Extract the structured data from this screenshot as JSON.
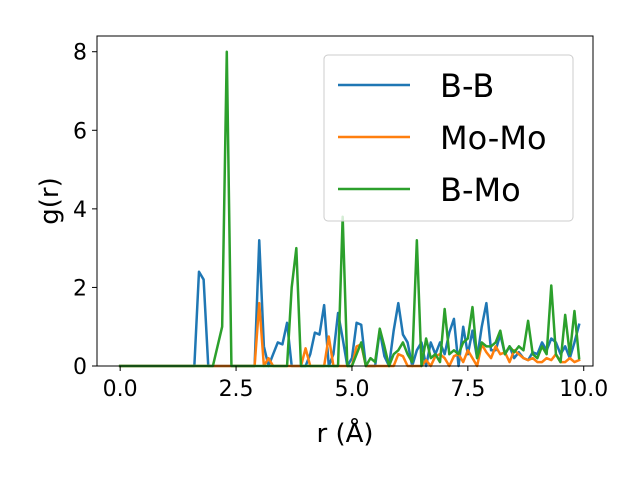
{
  "chart_data": {
    "type": "line",
    "xlabel": "r (Å)",
    "ylabel": "g(r)",
    "xlim": [
      -0.5,
      10.2
    ],
    "ylim": [
      0,
      8.4
    ],
    "xticks": [
      0.0,
      2.5,
      5.0,
      7.5,
      10.0
    ],
    "xtick_labels": [
      "0.0",
      "2.5",
      "5.0",
      "7.5",
      "10.0"
    ],
    "yticks": [
      0,
      2,
      4,
      6,
      8
    ],
    "ytick_labels": [
      "0",
      "2",
      "4",
      "6",
      "8"
    ],
    "grid": false,
    "legend_position": "top-right",
    "series": [
      {
        "name": "B-B",
        "color": "#1f77b4",
        "points": [
          [
            0.0,
            0
          ],
          [
            1.6,
            0
          ],
          [
            1.7,
            2.4
          ],
          [
            1.8,
            2.2
          ],
          [
            1.9,
            0
          ],
          [
            2.9,
            0
          ],
          [
            3.0,
            3.2
          ],
          [
            3.1,
            0.5
          ],
          [
            3.2,
            0
          ],
          [
            3.3,
            0.3
          ],
          [
            3.4,
            0.6
          ],
          [
            3.5,
            0.55
          ],
          [
            3.6,
            1.1
          ],
          [
            3.7,
            0
          ],
          [
            4.0,
            0
          ],
          [
            4.1,
            0.3
          ],
          [
            4.2,
            0.85
          ],
          [
            4.3,
            0.8
          ],
          [
            4.4,
            1.55
          ],
          [
            4.5,
            0
          ],
          [
            4.6,
            0.3
          ],
          [
            4.7,
            1.35
          ],
          [
            4.8,
            0.7
          ],
          [
            4.9,
            0
          ],
          [
            5.0,
            0.2
          ],
          [
            5.1,
            1.1
          ],
          [
            5.2,
            1.05
          ],
          [
            5.3,
            0
          ],
          [
            5.5,
            0
          ],
          [
            5.6,
            0.9
          ],
          [
            5.7,
            0.25
          ],
          [
            5.8,
            0
          ],
          [
            5.9,
            0.9
          ],
          [
            6.0,
            1.6
          ],
          [
            6.1,
            0.8
          ],
          [
            6.2,
            0.6
          ],
          [
            6.3,
            0
          ],
          [
            6.4,
            0.4
          ],
          [
            6.5,
            0.6
          ],
          [
            6.6,
            0
          ],
          [
            6.7,
            0.6
          ],
          [
            6.8,
            0.3
          ],
          [
            6.9,
            0.6
          ],
          [
            7.0,
            0.3
          ],
          [
            7.1,
            0.85
          ],
          [
            7.2,
            1.2
          ],
          [
            7.3,
            0
          ],
          [
            7.4,
            1.0
          ],
          [
            7.5,
            0.3
          ],
          [
            7.6,
            0.9
          ],
          [
            7.7,
            0.2
          ],
          [
            7.8,
            1.0
          ],
          [
            7.9,
            1.6
          ],
          [
            8.0,
            0.4
          ],
          [
            8.1,
            0.4
          ],
          [
            8.2,
            0.8
          ],
          [
            8.3,
            0.3
          ],
          [
            8.4,
            0.5
          ],
          [
            8.5,
            0.2
          ],
          [
            8.6,
            0.35
          ],
          [
            8.7,
            0.2
          ],
          [
            8.8,
            0.15
          ],
          [
            8.9,
            0.35
          ],
          [
            9.0,
            0.3
          ],
          [
            9.1,
            0.6
          ],
          [
            9.2,
            0.4
          ],
          [
            9.3,
            0.7
          ],
          [
            9.4,
            0.6
          ],
          [
            9.5,
            0.3
          ],
          [
            9.6,
            0.5
          ],
          [
            9.7,
            0.2
          ],
          [
            9.8,
            0.6
          ],
          [
            9.9,
            1.05
          ]
        ]
      },
      {
        "name": "Mo-Mo",
        "color": "#ff7f0e",
        "points": [
          [
            0.0,
            0
          ],
          [
            2.9,
            0
          ],
          [
            3.0,
            1.6
          ],
          [
            3.1,
            0
          ],
          [
            3.2,
            0.2
          ],
          [
            3.3,
            0
          ],
          [
            3.9,
            0
          ],
          [
            4.0,
            0.45
          ],
          [
            4.1,
            0
          ],
          [
            4.4,
            0
          ],
          [
            4.5,
            0.75
          ],
          [
            4.6,
            0
          ],
          [
            5.0,
            0
          ],
          [
            5.1,
            0.5
          ],
          [
            5.2,
            0.55
          ],
          [
            5.3,
            0
          ],
          [
            5.9,
            0
          ],
          [
            6.0,
            0.3
          ],
          [
            6.1,
            0.25
          ],
          [
            6.2,
            0
          ],
          [
            6.5,
            0
          ],
          [
            6.6,
            0.15
          ],
          [
            6.7,
            0
          ],
          [
            6.8,
            0.25
          ],
          [
            6.9,
            0.3
          ],
          [
            7.0,
            0.2
          ],
          [
            7.1,
            0
          ],
          [
            7.2,
            0.25
          ],
          [
            7.3,
            0.3
          ],
          [
            7.4,
            0.1
          ],
          [
            7.5,
            0.4
          ],
          [
            7.6,
            0.2
          ],
          [
            7.7,
            0
          ],
          [
            7.8,
            0.55
          ],
          [
            7.9,
            0.35
          ],
          [
            8.0,
            0.2
          ],
          [
            8.1,
            0.5
          ],
          [
            8.2,
            0.3
          ],
          [
            8.3,
            0.35
          ],
          [
            8.4,
            0.1
          ],
          [
            8.5,
            0.4
          ],
          [
            8.6,
            0.3
          ],
          [
            8.7,
            0.2
          ],
          [
            8.8,
            0.15
          ],
          [
            8.9,
            0.2
          ],
          [
            9.0,
            0.1
          ],
          [
            9.1,
            0.1
          ],
          [
            9.2,
            0.2
          ],
          [
            9.3,
            0.15
          ],
          [
            9.4,
            0.3
          ],
          [
            9.5,
            0.1
          ],
          [
            9.6,
            0.1
          ],
          [
            9.7,
            0.2
          ],
          [
            9.8,
            0.1
          ],
          [
            9.9,
            0.15
          ]
        ]
      },
      {
        "name": "B-Mo",
        "color": "#2ca02c",
        "points": [
          [
            0.0,
            0
          ],
          [
            2.0,
            0
          ],
          [
            2.2,
            1.0
          ],
          [
            2.3,
            8.0
          ],
          [
            2.4,
            0
          ],
          [
            3.6,
            0
          ],
          [
            3.7,
            2.0
          ],
          [
            3.8,
            3.0
          ],
          [
            3.9,
            0
          ],
          [
            4.7,
            0
          ],
          [
            4.8,
            3.8
          ],
          [
            4.9,
            0
          ],
          [
            5.0,
            0
          ],
          [
            5.1,
            0.3
          ],
          [
            5.2,
            0.6
          ],
          [
            5.3,
            0
          ],
          [
            5.4,
            0.2
          ],
          [
            5.5,
            0.1
          ],
          [
            5.6,
            0.95
          ],
          [
            5.7,
            0.5
          ],
          [
            5.8,
            0
          ],
          [
            5.9,
            0.3
          ],
          [
            6.0,
            0.4
          ],
          [
            6.1,
            0.6
          ],
          [
            6.2,
            0.3
          ],
          [
            6.3,
            0.1
          ],
          [
            6.4,
            3.2
          ],
          [
            6.5,
            0
          ],
          [
            6.6,
            0.7
          ],
          [
            6.7,
            0.2
          ],
          [
            6.8,
            0.3
          ],
          [
            6.9,
            0.1
          ],
          [
            7.0,
            1.45
          ],
          [
            7.1,
            0.3
          ],
          [
            7.2,
            0.4
          ],
          [
            7.3,
            0.3
          ],
          [
            7.4,
            0.6
          ],
          [
            7.5,
            0.7
          ],
          [
            7.6,
            1.5
          ],
          [
            7.7,
            0.2
          ],
          [
            7.8,
            0.6
          ],
          [
            7.9,
            0.5
          ],
          [
            8.0,
            0.5
          ],
          [
            8.1,
            0.6
          ],
          [
            8.2,
            0.9
          ],
          [
            8.3,
            0.3
          ],
          [
            8.4,
            0.5
          ],
          [
            8.5,
            0.35
          ],
          [
            8.6,
            0.5
          ],
          [
            8.7,
            0.4
          ],
          [
            8.8,
            1.15
          ],
          [
            8.9,
            0.3
          ],
          [
            9.0,
            0.2
          ],
          [
            9.1,
            0.5
          ],
          [
            9.2,
            0.3
          ],
          [
            9.3,
            2.05
          ],
          [
            9.4,
            0.3
          ],
          [
            9.5,
            0.1
          ],
          [
            9.6,
            1.3
          ],
          [
            9.7,
            0.3
          ],
          [
            9.8,
            1.4
          ],
          [
            9.9,
            0.2
          ]
        ]
      }
    ]
  }
}
